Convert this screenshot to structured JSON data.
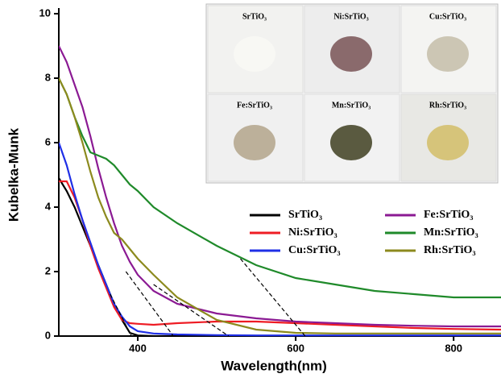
{
  "chart_data": {
    "type": "line",
    "xlabel": "Wavelength(nm)",
    "ylabel": "Kubelka-Munk",
    "x": [
      300,
      310,
      320,
      330,
      340,
      350,
      360,
      370,
      380,
      390,
      400,
      420,
      450,
      500,
      550,
      600,
      650,
      700,
      750,
      800,
      860
    ],
    "series": [
      {
        "name": "SrTiO₃",
        "color": "#000000",
        "values": [
          4.9,
          4.5,
          4.0,
          3.4,
          2.8,
          2.2,
          1.6,
          1.0,
          0.5,
          0.1,
          0.02,
          0,
          0,
          0,
          0,
          0,
          0,
          0,
          0,
          0,
          0
        ]
      },
      {
        "name": "Ni:SrTiO₃",
        "color": "#ee1c24",
        "values": [
          4.8,
          4.8,
          4.3,
          3.6,
          2.8,
          2.1,
          1.5,
          0.9,
          0.5,
          0.4,
          0.38,
          0.35,
          0.4,
          0.45,
          0.45,
          0.4,
          0.35,
          0.3,
          0.25,
          0.22,
          0.2
        ]
      },
      {
        "name": "Cu:SrTiO₃",
        "color": "#1f2fe6",
        "values": [
          6.0,
          5.3,
          4.4,
          3.6,
          2.9,
          2.2,
          1.6,
          1.0,
          0.6,
          0.3,
          0.15,
          0.08,
          0.05,
          0.03,
          0.02,
          0.02,
          0.02,
          0.02,
          0.02,
          0.02,
          0.02
        ]
      },
      {
        "name": "Fe:SrTiO₃",
        "color": "#8b1a93",
        "values": [
          9.0,
          8.5,
          7.8,
          7.1,
          6.2,
          5.2,
          4.3,
          3.5,
          2.8,
          2.3,
          1.9,
          1.4,
          1.0,
          0.7,
          0.55,
          0.45,
          0.4,
          0.35,
          0.32,
          0.3,
          0.3
        ]
      },
      {
        "name": "Mn:SrTiO₃",
        "color": "#1f8a2a",
        "values": [
          8.0,
          7.5,
          6.8,
          6.2,
          5.7,
          5.6,
          5.5,
          5.3,
          5.0,
          4.7,
          4.5,
          4.0,
          3.5,
          2.8,
          2.2,
          1.8,
          1.6,
          1.4,
          1.3,
          1.2,
          1.2
        ]
      },
      {
        "name": "Rh:SrTiO₃",
        "color": "#8c8a1e",
        "values": [
          8.0,
          7.5,
          6.8,
          6.0,
          5.1,
          4.3,
          3.7,
          3.2,
          3.0,
          2.7,
          2.4,
          1.9,
          1.2,
          0.5,
          0.2,
          0.1,
          0.08,
          0.08,
          0.08,
          0.08,
          0.08
        ]
      }
    ],
    "tangents": [
      {
        "x": [
          365,
          392
        ],
        "y": [
          1.3,
          0
        ]
      },
      {
        "x": [
          385,
          445
        ],
        "y": [
          2.0,
          0
        ]
      },
      {
        "x": [
          420,
          515
        ],
        "y": [
          1.6,
          0
        ]
      },
      {
        "x": [
          530,
          612
        ],
        "y": [
          2.4,
          0
        ]
      }
    ],
    "xlim": [
      300,
      860
    ],
    "xticks": [
      400,
      600,
      800
    ],
    "ylim": [
      0,
      10
    ],
    "yticks": [
      0,
      2,
      4,
      6,
      8,
      10
    ],
    "inset": {
      "labels": [
        "SrTiO₃",
        "Ni:SrTiO₃",
        "Cu:SrTiO₃",
        "Fe:SrTiO₃",
        "Mn:SrTiO₃",
        "Rh:SrTiO₃"
      ]
    }
  }
}
